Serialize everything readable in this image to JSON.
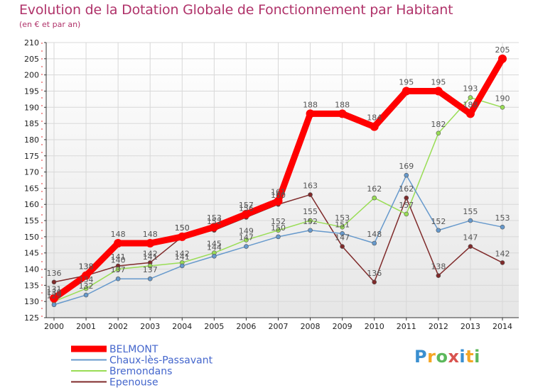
{
  "chart_data": {
    "type": "line",
    "title": "Evolution de la Dotation Globale de Fonctionnement par Habitant",
    "subtitle": "(en € et par an)",
    "xlabel": "",
    "ylabel": "",
    "ylim": [
      125,
      210
    ],
    "yticks": [
      125,
      130,
      135,
      140,
      145,
      150,
      155,
      160,
      165,
      170,
      175,
      180,
      185,
      190,
      195,
      200,
      205,
      210
    ],
    "categories": [
      "2000",
      "2001",
      "2002",
      "2003",
      "2004",
      "2005",
      "2006",
      "2007",
      "2008",
      "2009",
      "2010",
      "2011",
      "2012",
      "2013",
      "2014"
    ],
    "series": [
      {
        "name": "BELMONT",
        "color": "#ff0000",
        "values": [
          131,
          138,
          148,
          148,
          150,
          153,
          157,
          161,
          188,
          188,
          184,
          195,
          195,
          188,
          205
        ]
      },
      {
        "name": "Chaux-lès-Passavant",
        "color": "#6699cc",
        "values": [
          129,
          132,
          137,
          137,
          141,
          144,
          147,
          150,
          152,
          151,
          148,
          169,
          152,
          155,
          153
        ]
      },
      {
        "name": "Bremondans",
        "color": "#99dd55",
        "values": [
          130,
          134,
          140,
          141,
          142,
          145,
          149,
          152,
          155,
          153,
          162,
          157,
          182,
          193,
          190
        ]
      },
      {
        "name": "Epenouse",
        "color": "#7f2a2a",
        "values": [
          136,
          138,
          141,
          142,
          150,
          152,
          156,
          160,
          163,
          147,
          136,
          162,
          138,
          147,
          142
        ]
      }
    ],
    "legend_position": "bottom-left"
  },
  "logo": {
    "text": "Proxiti",
    "letters": [
      "P",
      "r",
      "o",
      "x",
      "i",
      "t",
      "i"
    ],
    "colors": [
      "#3a8fd0",
      "#f5a623",
      "#5cb85c",
      "#d9534f",
      "#3a8fd0",
      "#f5a623",
      "#5cb85c"
    ]
  }
}
